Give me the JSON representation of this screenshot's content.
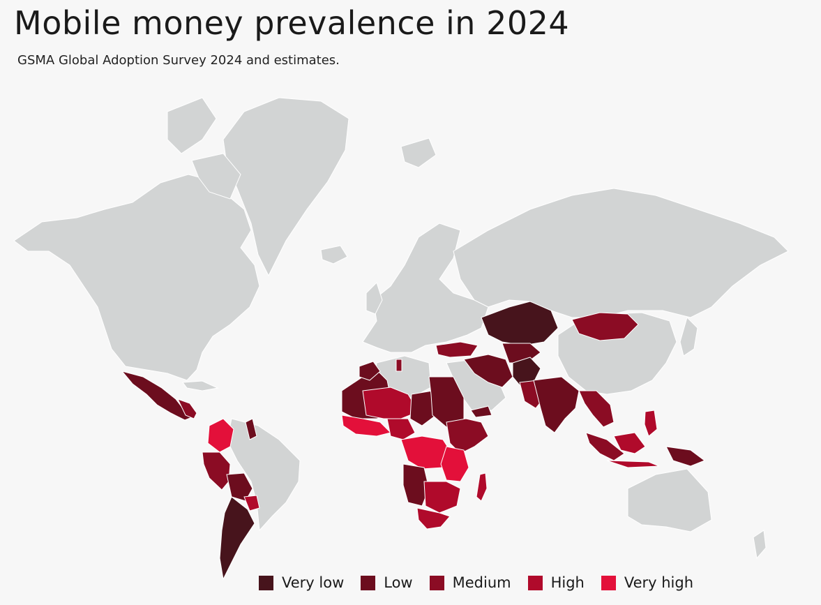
{
  "title": "Mobile money prevalence in 2024",
  "subtitle": "GSMA Global Adoption Survey 2024 and estimates.",
  "legend": [
    {
      "label": "Very low",
      "color": "#47141c"
    },
    {
      "label": "Low",
      "color": "#6c0d1e"
    },
    {
      "label": "Medium",
      "color": "#8b0c24"
    },
    {
      "label": "High",
      "color": "#b00a2b"
    },
    {
      "label": "Very high",
      "color": "#e3103a"
    }
  ],
  "colors": {
    "background": "#f7f7f7",
    "no_data": "#d2d4d4",
    "borders": "#ffffff"
  }
}
